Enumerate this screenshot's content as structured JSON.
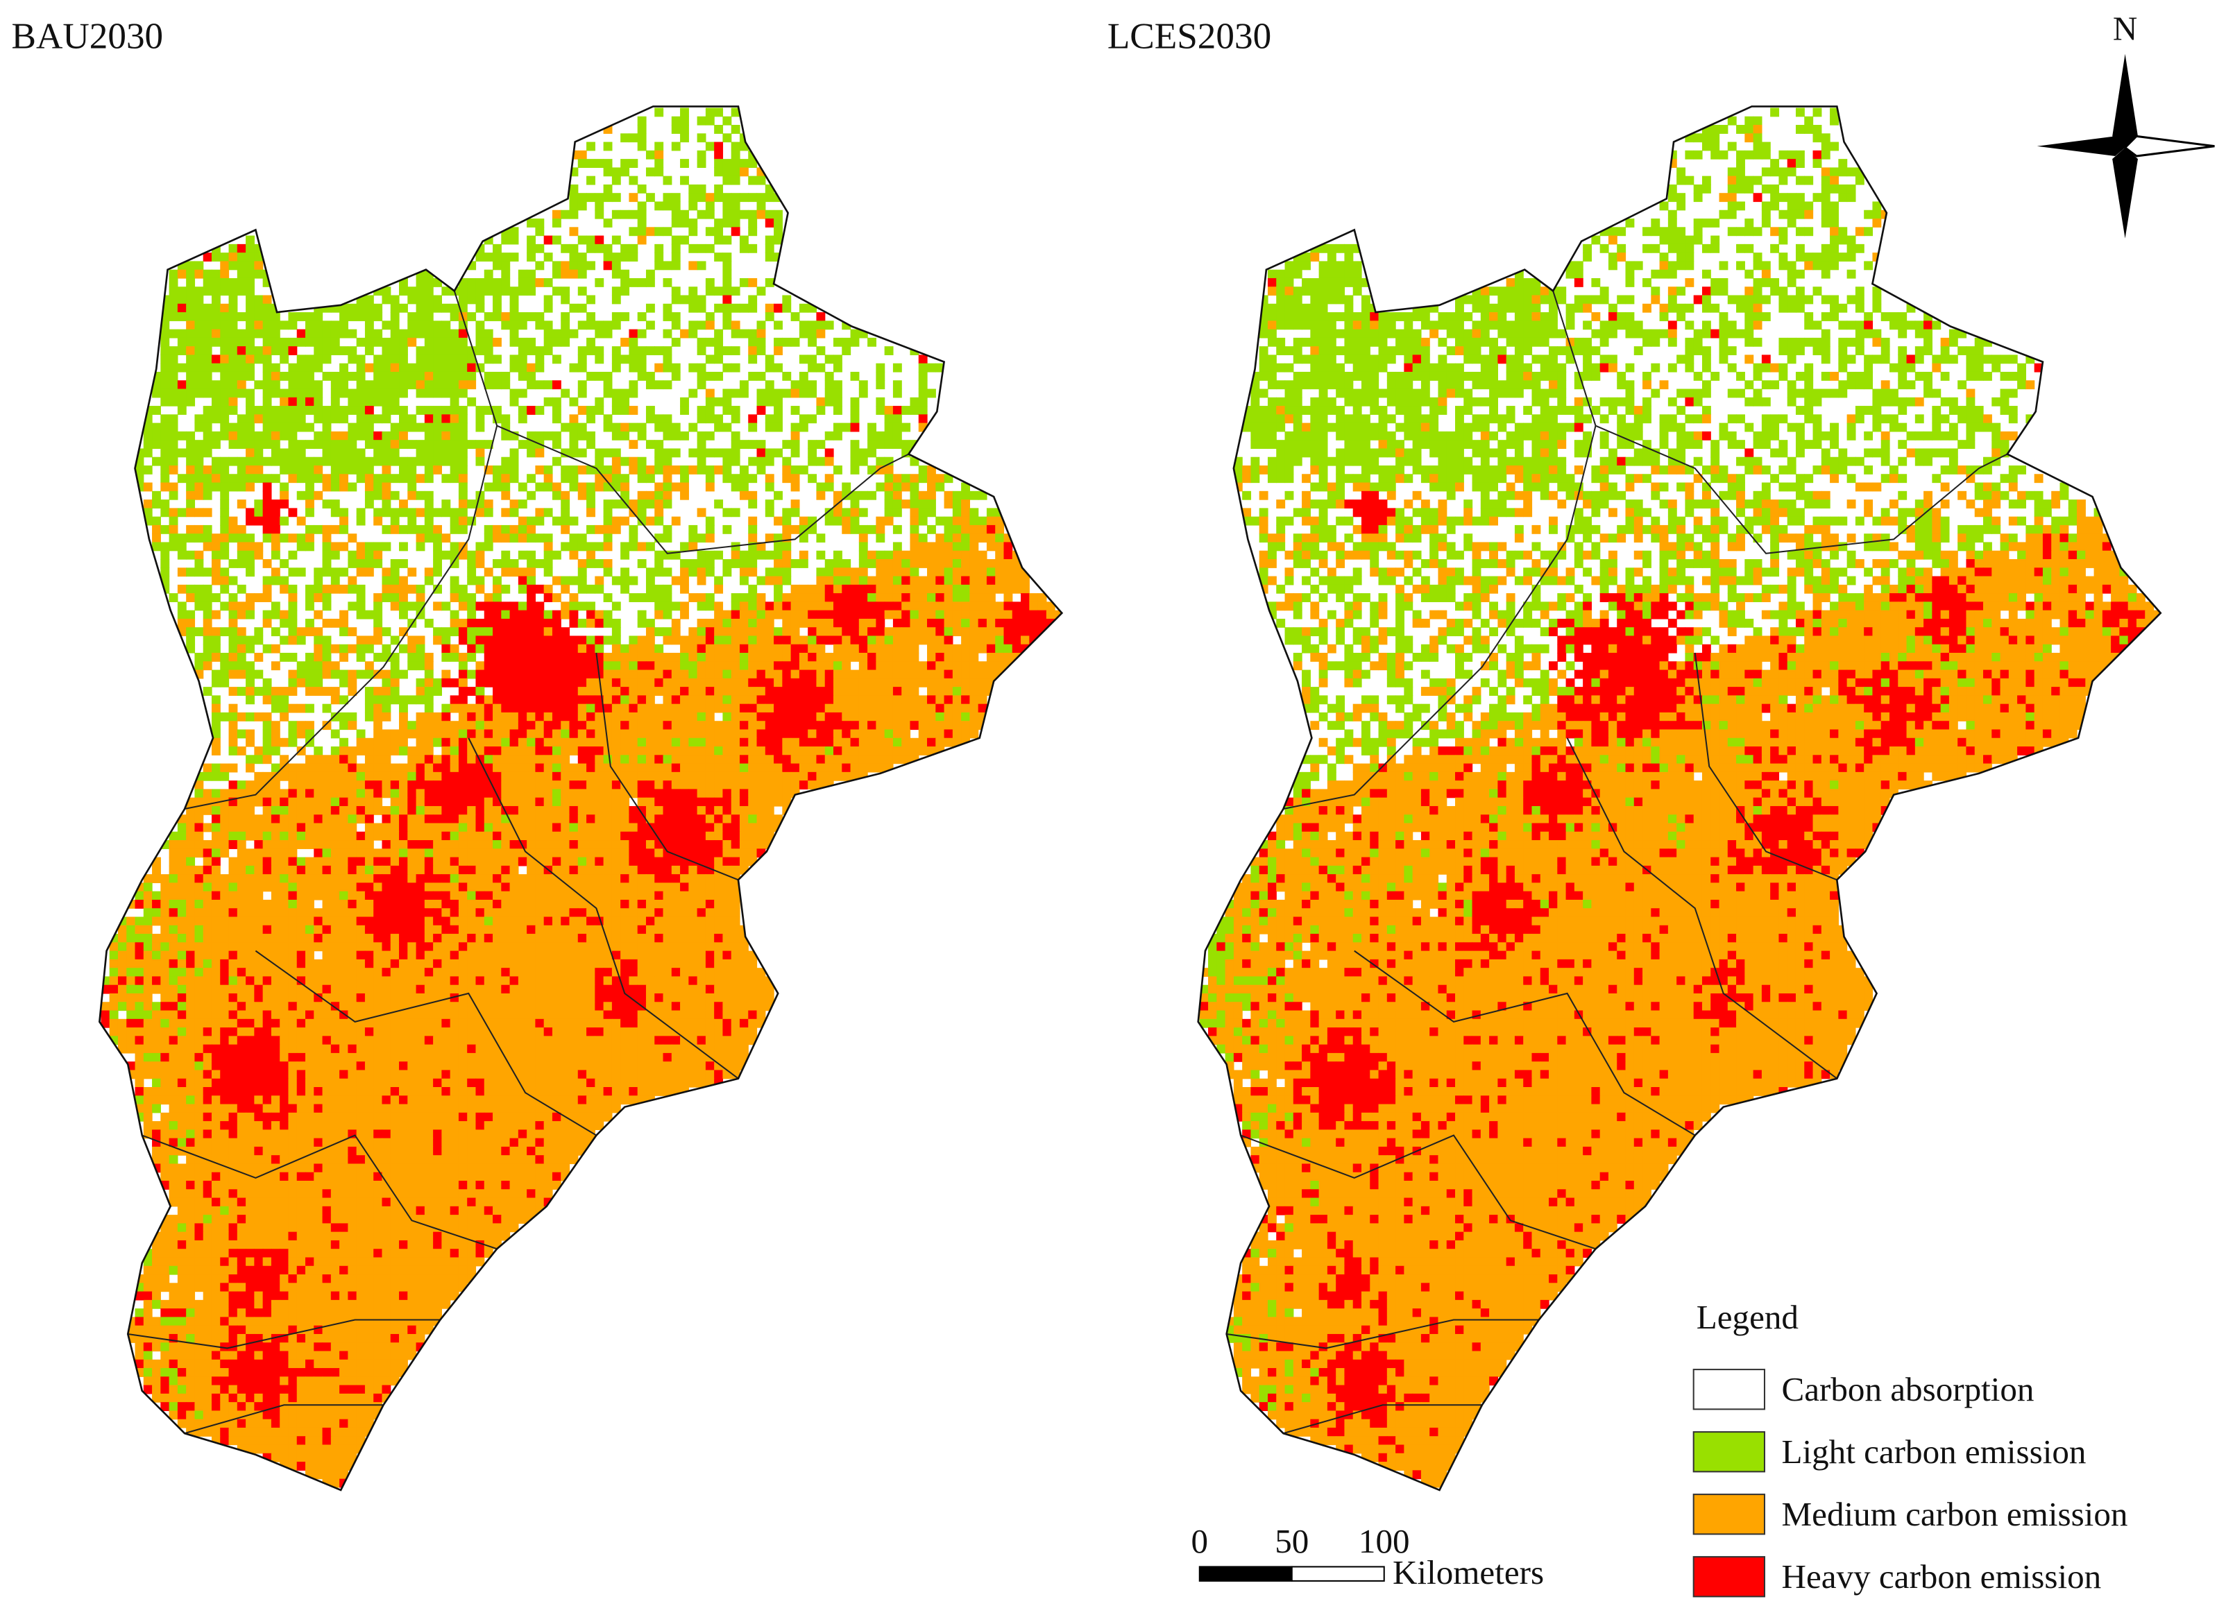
{
  "maps": [
    {
      "title": "BAU2030"
    },
    {
      "title": "LCES2030"
    }
  ],
  "north_arrow": {
    "label": "N"
  },
  "legend": {
    "title": "Legend",
    "items": [
      {
        "label": "Carbon absorption",
        "color": "#ffffff"
      },
      {
        "label": "Light carbon emission",
        "color": "#99e000"
      },
      {
        "label": "Medium carbon emission",
        "color": "#ffa500"
      },
      {
        "label": "Heavy carbon emission",
        "color": "#ff0000"
      }
    ]
  },
  "scale_bar": {
    "ticks": [
      0,
      50,
      100
    ],
    "unit": "Kilometers"
  }
}
